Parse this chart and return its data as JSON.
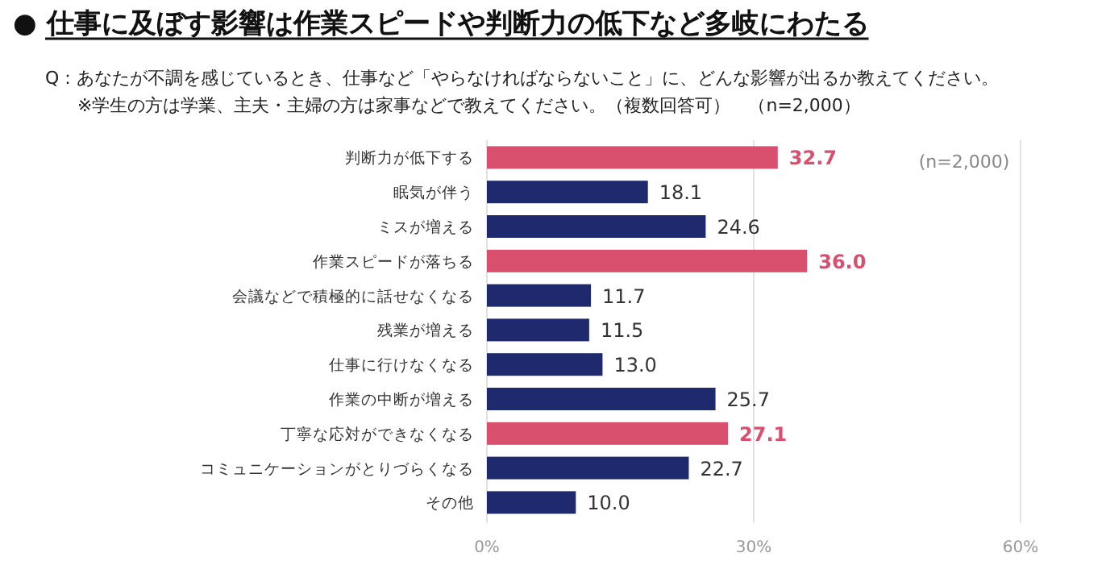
{
  "chart_data": {
    "type": "bar",
    "orientation": "horizontal",
    "title": "● 仕事に及ぼす影響は作業スピードや判断力の低下など多岐にわたる",
    "subtitle": "Q：あなたが不調を感じているとき、仕事など「やらなければならないこと」に、どんな影響が出るか教えてください。",
    "annotations": [
      "※学生の方は学業、主夫・主婦の方は家事などで教えてください。（複数回答可）　（n=2,000）",
      "(n=2,000)"
    ],
    "categories": [
      "判断力が低下する",
      "眠気が伴う",
      "ミスが増える",
      "作業スピードが落ちる",
      "会議などで積極的に話せなくなる",
      "残業が増える",
      "仕事に行けなくなる",
      "作業の中断が増える",
      "丁寧な応対ができなくなる",
      "コミュニケーションがとりづらくなる",
      "その他"
    ],
    "values": [
      32.7,
      18.1,
      24.6,
      36.0,
      11.7,
      11.5,
      13.0,
      25.7,
      27.1,
      22.7,
      10.0
    ],
    "value_labels": [
      "32.7",
      "18.1",
      "24.6",
      "36.0",
      "11.7",
      "11.5",
      "13.0",
      "25.7",
      "27.1",
      "22.7",
      "10.0"
    ],
    "colors": [
      "#d9506f",
      "#1f2a6e",
      "#1f2a6e",
      "#d9506f",
      "#1f2a6e",
      "#1f2a6e",
      "#1f2a6e",
      "#1f2a6e",
      "#d9506f",
      "#1f2a6e",
      "#1f2a6e"
    ],
    "xlim": [
      0,
      60
    ],
    "xticks": [
      {
        "value": 0,
        "label": "0%"
      },
      {
        "value": 30,
        "label": "30%"
      },
      {
        "value": 60,
        "label": "60%"
      }
    ],
    "grid": "x"
  }
}
